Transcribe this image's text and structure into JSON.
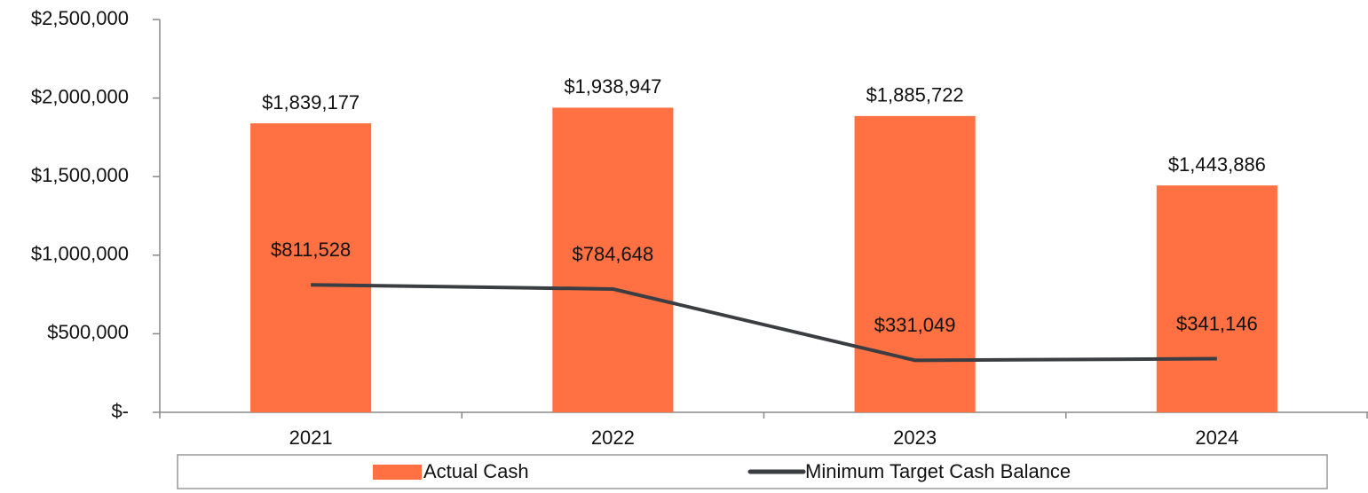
{
  "chart_data": {
    "type": "bar",
    "categories": [
      "2021",
      "2022",
      "2023",
      "2024"
    ],
    "series": [
      {
        "name": "Actual Cash",
        "type": "bar",
        "color": "#ff7043",
        "values": [
          1839177,
          1938947,
          1885722,
          1443886
        ],
        "value_labels": [
          "$1,839,177",
          "$1,938,947",
          "$1,885,722",
          "$1,443,886"
        ]
      },
      {
        "name": "Minimum Target Cash Balance",
        "type": "line",
        "color": "#3a3d42",
        "values": [
          811528,
          784648,
          331049,
          341146
        ],
        "value_labels": [
          "$811,528",
          "$784,648",
          "$331,049",
          "$341,146"
        ]
      }
    ],
    "ylim": [
      0,
      2500000
    ],
    "yticks": [
      {
        "value": 0,
        "label": "$-"
      },
      {
        "value": 500000,
        "label": "$500,000"
      },
      {
        "value": 1000000,
        "label": "$1,000,000"
      },
      {
        "value": 1500000,
        "label": "$1,500,000"
      },
      {
        "value": 2000000,
        "label": "$2,000,000"
      },
      {
        "value": 2500000,
        "label": "$2,500,000"
      }
    ],
    "legend": "bottom"
  }
}
